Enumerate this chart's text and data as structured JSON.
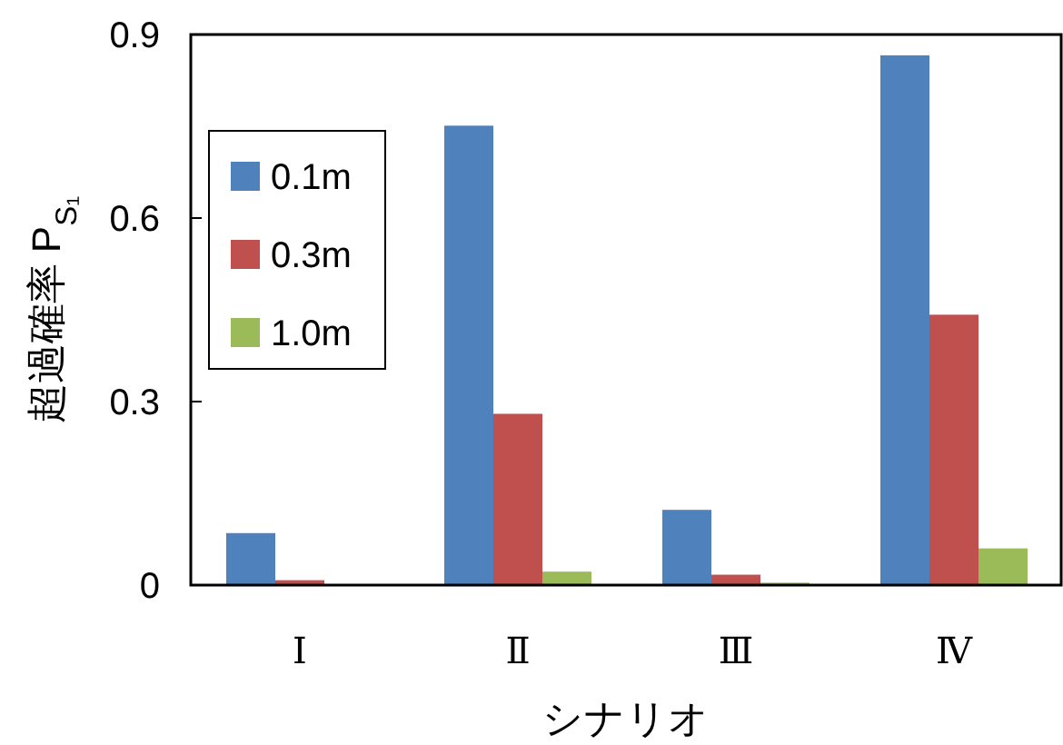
{
  "chart_data": {
    "type": "bar",
    "xlabel": "シナリオ",
    "ylabel": "超過確率 P$_{S₁}$",
    "categories": [
      "Ⅰ",
      "Ⅱ",
      "Ⅲ",
      "Ⅳ"
    ],
    "series": [
      {
        "name": "0.1m",
        "color": "#4f81bd",
        "values": [
          0.085,
          0.751,
          0.123,
          0.866
        ]
      },
      {
        "name": "0.3m",
        "color": "#c0504d",
        "values": [
          0.008,
          0.28,
          0.017,
          0.442
        ]
      },
      {
        "name": "1.0m",
        "color": "#9bbb59",
        "values": [
          0,
          0.022,
          0.004,
          0.06
        ]
      }
    ],
    "ylim": [
      0,
      0.9
    ],
    "yticks": [
      0,
      0.3,
      0.6,
      0.9
    ],
    "grid": false,
    "legend": "top left"
  }
}
